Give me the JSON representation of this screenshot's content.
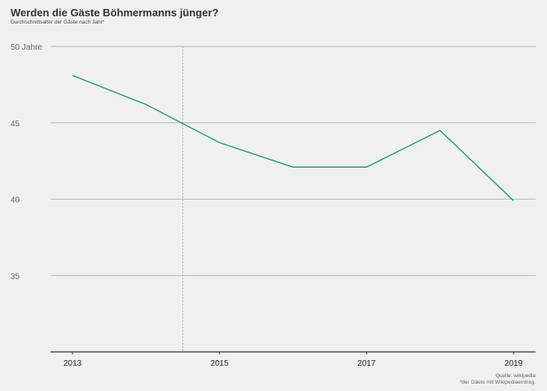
{
  "chart_data": {
    "type": "line",
    "title": "Werden die Gäste Böhmermanns jünger?",
    "subtitle": "Durchschnittsalter der Gäste nach Jahr*",
    "x": [
      2013,
      2014,
      2015,
      2016,
      2017,
      2018,
      2019
    ],
    "series": [
      {
        "values": [
          48.1,
          46.2,
          43.7,
          42.1,
          42.1,
          44.5,
          39.9
        ],
        "color": "#1a9e74"
      }
    ],
    "xticks": [
      2013,
      2015,
      2017,
      2019
    ],
    "xtick_labels": [
      "2013",
      "2015",
      "2017",
      "2019"
    ],
    "yticks": [
      35,
      40,
      45,
      50
    ],
    "ytick_labels": [
      "35",
      "40",
      "45",
      "50 Jahre"
    ],
    "xlim": [
      2012.7,
      2019.3
    ],
    "ylim": [
      30,
      50
    ],
    "reference_line_x": 2014.5,
    "grid": true,
    "source_lines": [
      "Quelle: wikipedia",
      "*der Gäste mit Wikipediaeintrag."
    ]
  }
}
